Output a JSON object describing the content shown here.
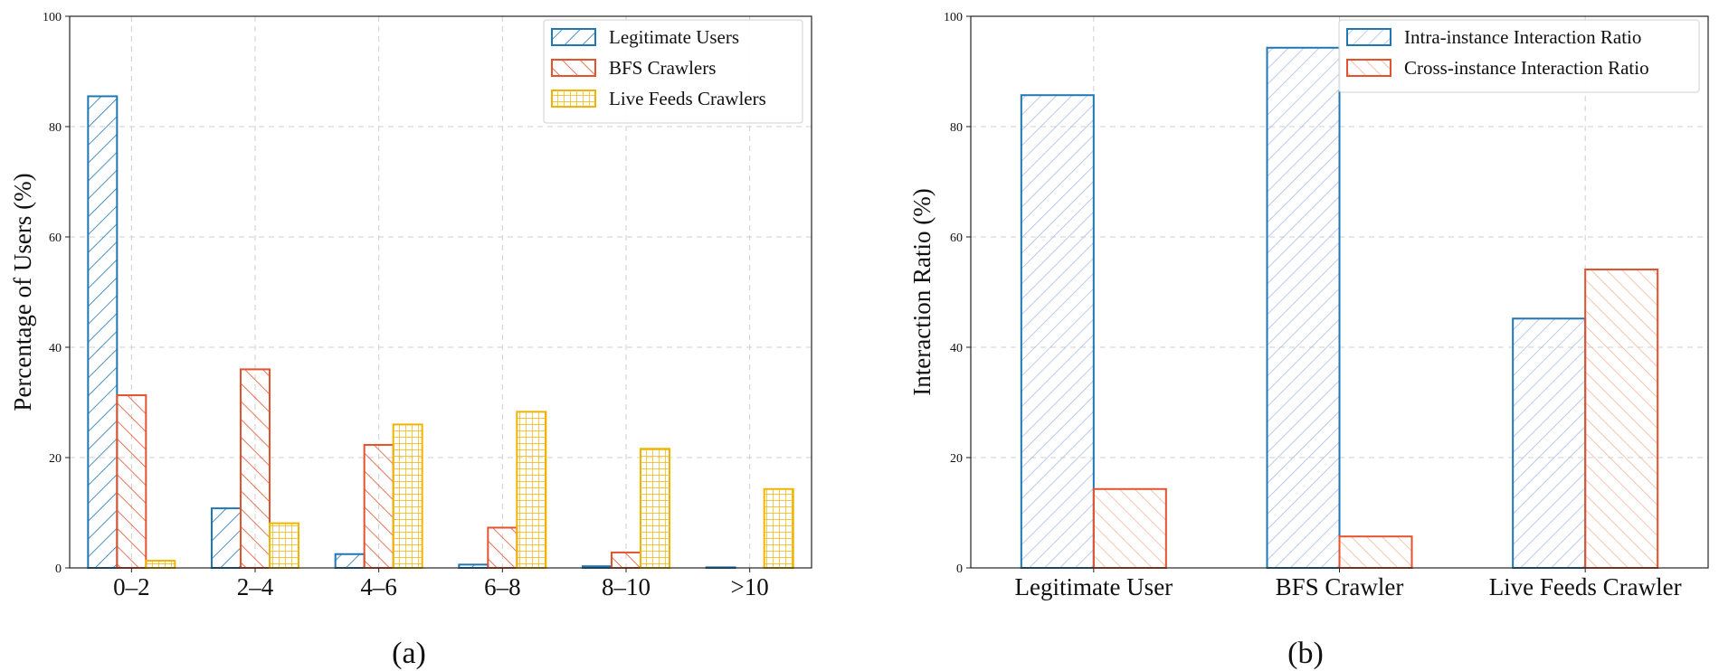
{
  "chart_data": [
    {
      "type": "bar",
      "panel_label": "(a)",
      "categories": [
        "0–2",
        "2–4",
        "4–6",
        "6–8",
        "8–10",
        ">10"
      ],
      "ylabel": "Percentage of Users (%)",
      "xlabel": "",
      "ylim": [
        0,
        100
      ],
      "yticks": [
        "0",
        "20",
        "40",
        "60",
        "80",
        "100"
      ],
      "grid": true,
      "legend_position": "top-right",
      "series": [
        {
          "name": "Legitimate Users",
          "color": "#1f77b4",
          "hatch": "diagonal-forward",
          "values": [
            85.5,
            10.8,
            2.5,
            0.6,
            0.3,
            0.1
          ]
        },
        {
          "name": "BFS Crawlers",
          "color": "#e2532e",
          "hatch": "diagonal-back",
          "values": [
            31.3,
            36.0,
            22.3,
            7.3,
            2.8,
            0.0
          ]
        },
        {
          "name": "Live Feeds Crawlers",
          "color": "#f0b400",
          "hatch": "grid",
          "values": [
            1.3,
            8.1,
            26.0,
            28.3,
            21.6,
            14.3
          ]
        }
      ]
    },
    {
      "type": "bar",
      "panel_label": "(b)",
      "categories": [
        "Legitimate User",
        "BFS Crawler",
        "Live Feeds Crawler"
      ],
      "ylabel": "Interaction Ratio (%)",
      "xlabel": "",
      "ylim": [
        0,
        100
      ],
      "yticks": [
        "0",
        "20",
        "40",
        "60",
        "80",
        "100"
      ],
      "grid": true,
      "legend_position": "top-right",
      "series": [
        {
          "name": "Intra-instance Interaction Ratio",
          "color": "#1f77b4",
          "hatch": "light-diagonal-forward",
          "hatch_color": "#a9bde8",
          "values": [
            85.7,
            94.3,
            45.2
          ]
        },
        {
          "name": "Cross-instance Interaction Ratio",
          "color": "#e2532e",
          "hatch": "light-diagonal-back",
          "hatch_color": "#f5b59a",
          "values": [
            14.3,
            5.7,
            54.1
          ]
        }
      ]
    }
  ]
}
